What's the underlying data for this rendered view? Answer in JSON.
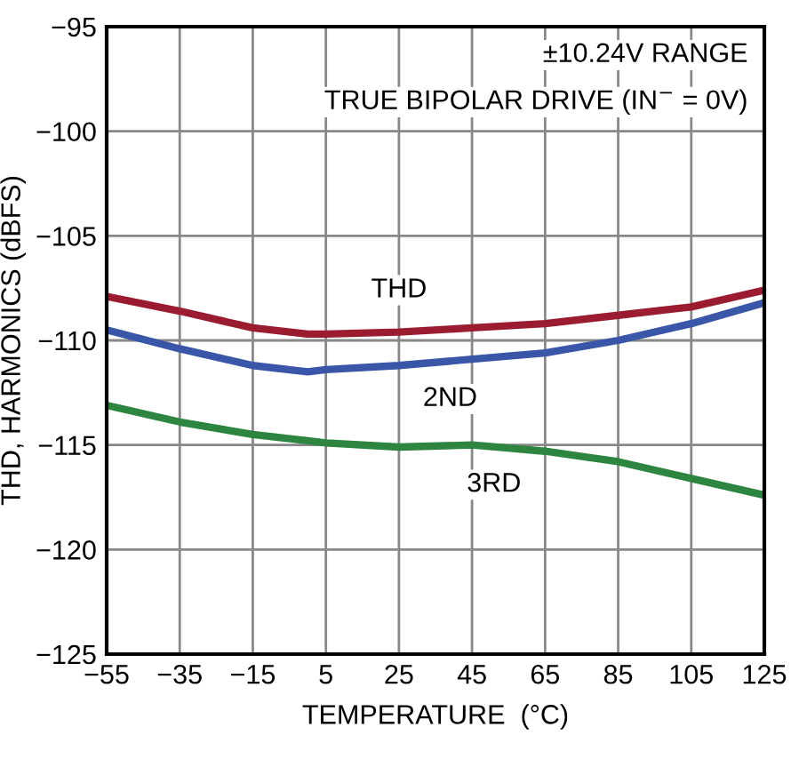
{
  "chart_data": {
    "type": "line",
    "xlabel": "TEMPERATURE  (°C)",
    "ylabel": "THD, HARMONICS (dBFS)",
    "x": [
      -55,
      -35,
      -15,
      0,
      5,
      25,
      45,
      65,
      85,
      105,
      125
    ],
    "series": [
      {
        "color": "#9b1b30",
        "values": [
          -107.9,
          -108.6,
          -109.4,
          -109.7,
          -109.7,
          -109.6,
          -109.4,
          -109.2,
          -108.8,
          -108.4,
          -107.6
        ]
      },
      {
        "color": "#3a56a8",
        "values": [
          -109.5,
          -110.4,
          -111.2,
          -111.5,
          -111.4,
          -111.2,
          -110.9,
          -110.6,
          -110.0,
          -109.2,
          -108.2
        ]
      },
      {
        "color": "#2e8540",
        "values": [
          -113.1,
          -113.9,
          -114.5,
          -114.8,
          -114.9,
          -115.1,
          -115.0,
          -115.3,
          -115.8,
          -116.6,
          -117.4
        ]
      }
    ],
    "annotations": [
      "±10.24V RANGE",
      "TRUE BIPOLAR DRIVE (IN$^{−}$ = 0V)",
      {
        "text": "THD",
        "x": 25,
        "y": -107.6
      },
      {
        "text": "2ND",
        "x": 39,
        "y": -112.8
      },
      {
        "text": "3RD",
        "x": 51,
        "y": -116.9
      }
    ],
    "xlim": [
      -55,
      125
    ],
    "xticks": [
      -55,
      -35,
      -15,
      5,
      25,
      45,
      65,
      85,
      105,
      125
    ],
    "ylim": [
      -125,
      -95
    ],
    "yticks": [
      -125,
      -120,
      -115,
      -110,
      -105,
      -100,
      -95
    ],
    "grid": true,
    "marker": "none",
    "line_style": "solid"
  }
}
